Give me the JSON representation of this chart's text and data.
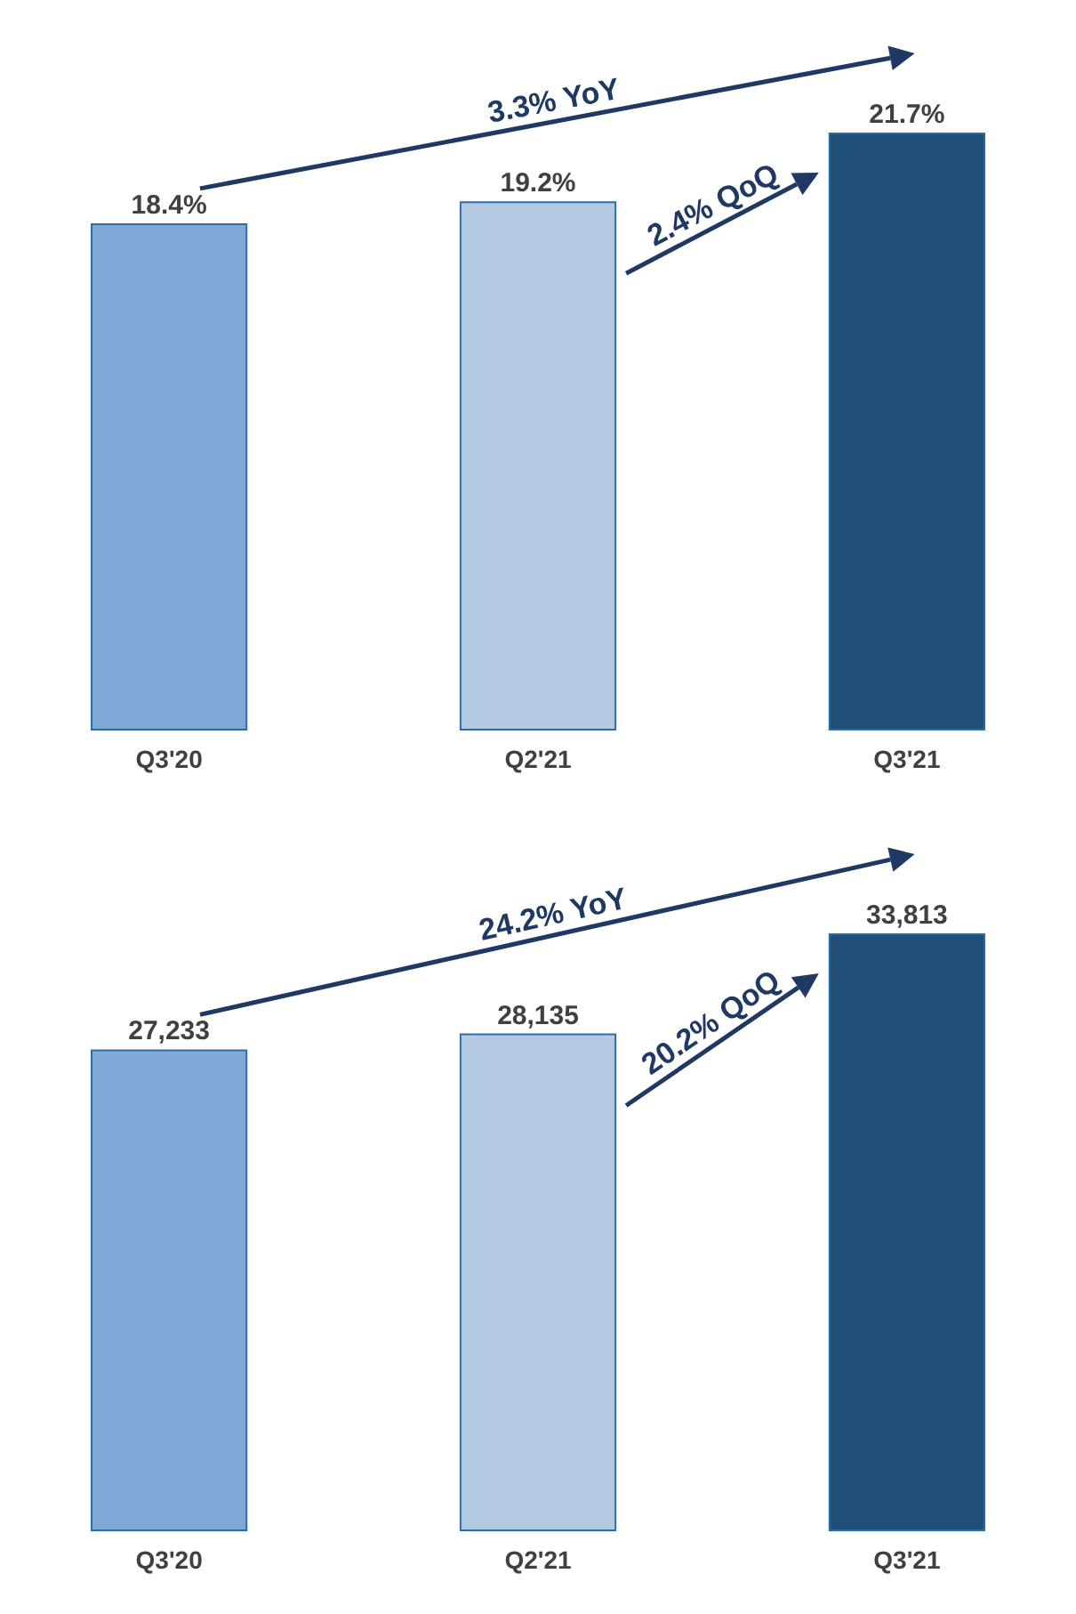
{
  "chart_data": [
    {
      "type": "bar",
      "categories": [
        "Q3'20",
        "Q2'21",
        "Q3'21"
      ],
      "values": [
        18.4,
        19.2,
        21.7
      ],
      "colors": [
        "#7fa8d6",
        "#b4c9e2",
        "#1f4e79"
      ],
      "value_labels": [
        "18.4%",
        "19.2%",
        "21.7%"
      ],
      "annotations": [
        "3.3% YoY",
        "2.4% QoQ"
      ]
    },
    {
      "type": "bar",
      "categories": [
        "Q3'20",
        "Q2'21",
        "Q3'21"
      ],
      "values": [
        27233,
        28135,
        33813
      ],
      "colors": [
        "#7fa8d6",
        "#b4c9e2",
        "#1f4e79"
      ],
      "value_labels": [
        "27,233",
        "28,135",
        "33,813"
      ],
      "annotations": [
        "24.2% YoY",
        "20.2% QoQ"
      ]
    }
  ]
}
